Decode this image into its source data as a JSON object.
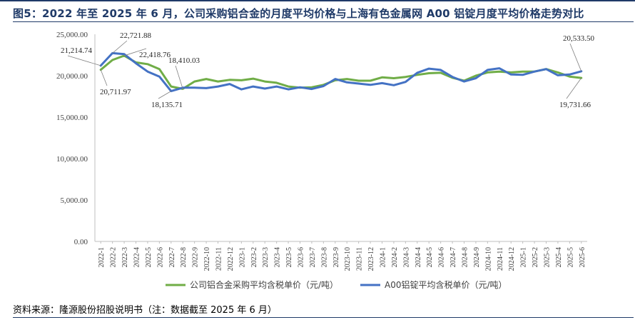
{
  "title": "图5：2022 年至 2025 年 6 月，公司采购铝合金的月度平均价格与上海有色金属网 A00 铝锭月度平均价格走势对比",
  "source": "资料来源：隆源股份招股说明书（注：数据截至 2025 年 6 月）",
  "chart_data": {
    "type": "line",
    "ylim": [
      0,
      25000
    ],
    "yticks": [
      "0.00",
      "5,000.00",
      "10,000.00",
      "15,000.00",
      "20,000.00",
      "25,000.00"
    ],
    "grid": false,
    "legend": "bottom",
    "categories": [
      "2022-1",
      "2022-2",
      "2022-3",
      "2022-4",
      "2022-5",
      "2022-6",
      "2022-7",
      "2022-8",
      "2022-9",
      "2022-10",
      "2022-11",
      "2022-12",
      "2023-1",
      "2023-2",
      "2023-3",
      "2023-4",
      "2023-5",
      "2023-6",
      "2023-7",
      "2023-8",
      "2023-9",
      "2023-10",
      "2023-11",
      "2023-12",
      "2024-1",
      "2024-2",
      "2024-3",
      "2024-4",
      "2024-5",
      "2024-6",
      "2024-7",
      "2024-8",
      "2024-9",
      "2024-10",
      "2024-11",
      "2024-12",
      "2025-1",
      "2025-2",
      "2025-3",
      "2025-4",
      "2025-5",
      "2025-6"
    ],
    "series": [
      {
        "name": "公司铝合金采购平均含税单价（元/吨）",
        "color": "#70ad47",
        "values": [
          20711.97,
          21900,
          22418.76,
          21600,
          21400,
          20800,
          18700,
          18410.03,
          19300,
          19600,
          19300,
          19500,
          19450,
          19650,
          19300,
          19150,
          18700,
          18550,
          18600,
          18900,
          19450,
          19600,
          19400,
          19400,
          19800,
          19700,
          19850,
          20100,
          20300,
          20350,
          19750,
          19400,
          20000,
          20400,
          20500,
          20400,
          20500,
          20500,
          20800,
          20400,
          19900,
          19731.66
        ]
      },
      {
        "name": "A00铝锭平均含税单价（元/吨）",
        "color": "#4472c4",
        "values": [
          21214.74,
          22721.88,
          22600,
          21500,
          20500,
          19900,
          18135.71,
          18550,
          18550,
          18500,
          18700,
          19000,
          18350,
          18700,
          18450,
          18700,
          18350,
          18600,
          18400,
          18750,
          19600,
          19200,
          19050,
          18900,
          19100,
          18850,
          19250,
          20350,
          20850,
          20700,
          19850,
          19300,
          19700,
          20700,
          20900,
          20150,
          20100,
          20500,
          20800,
          20050,
          20150,
          20533.5
        ]
      }
    ],
    "annotations": [
      "21,214.74",
      "22,721.88",
      "22,418.76",
      "18,410.03",
      "20,711.97",
      "18,135.71",
      "20,533.50",
      "19,731.66"
    ]
  }
}
